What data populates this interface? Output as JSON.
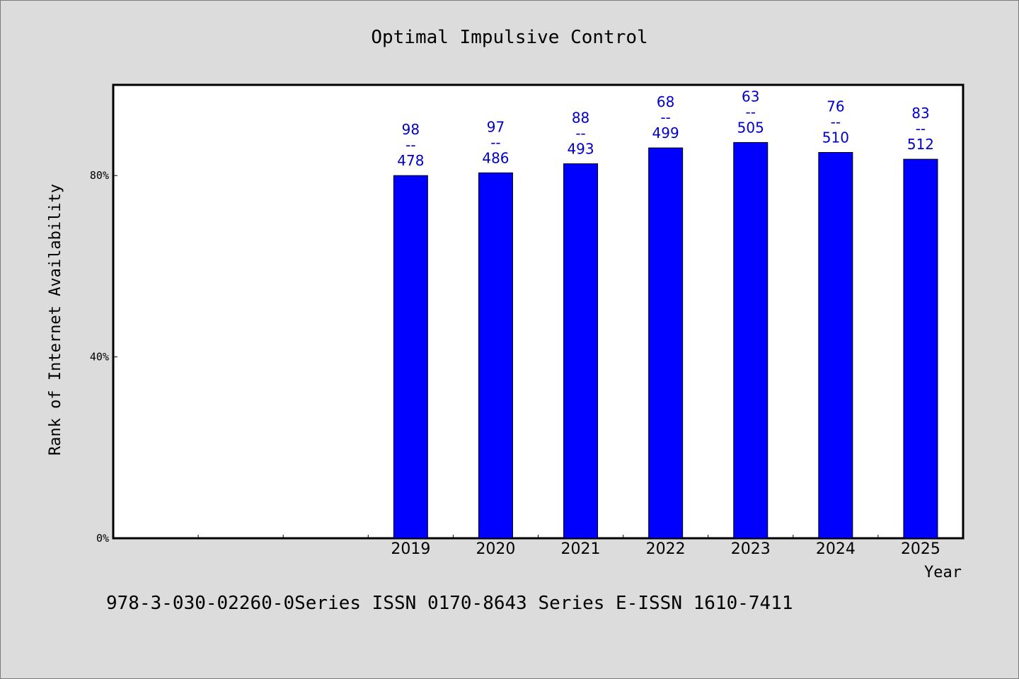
{
  "chart_data": {
    "type": "bar",
    "title": "Optimal Impulsive Control",
    "xlabel": "Year",
    "ylabel": "Rank of Internet Availability",
    "categories": [
      "",
      "",
      "",
      "2019",
      "2020",
      "2021",
      "2022",
      "2023",
      "2024",
      "2025"
    ],
    "series": [
      {
        "values": [
          null,
          null,
          null,
          80.0,
          80.6,
          82.6,
          86.1,
          87.3,
          85.1,
          83.6
        ],
        "color": "#0000ff",
        "labels": [
          null,
          null,
          null,
          [
            "98",
            "--",
            "478"
          ],
          [
            "97",
            "--",
            "486"
          ],
          [
            "88",
            "--",
            "493"
          ],
          [
            "68",
            "--",
            "499"
          ],
          [
            "63",
            "--",
            "505"
          ],
          [
            "76",
            "--",
            "510"
          ],
          [
            "83",
            "--",
            "512"
          ]
        ]
      }
    ],
    "ylim": [
      0,
      100
    ],
    "yticks": [
      0,
      40,
      80
    ],
    "ytick_labels": [
      "0%",
      "40%",
      "80%"
    ],
    "grid": false,
    "label_color": "#0000c8"
  },
  "footer": {
    "text": "978-3-030-02260-0Series ISSN 0170-8643 Series E-ISSN 1610-7411"
  }
}
